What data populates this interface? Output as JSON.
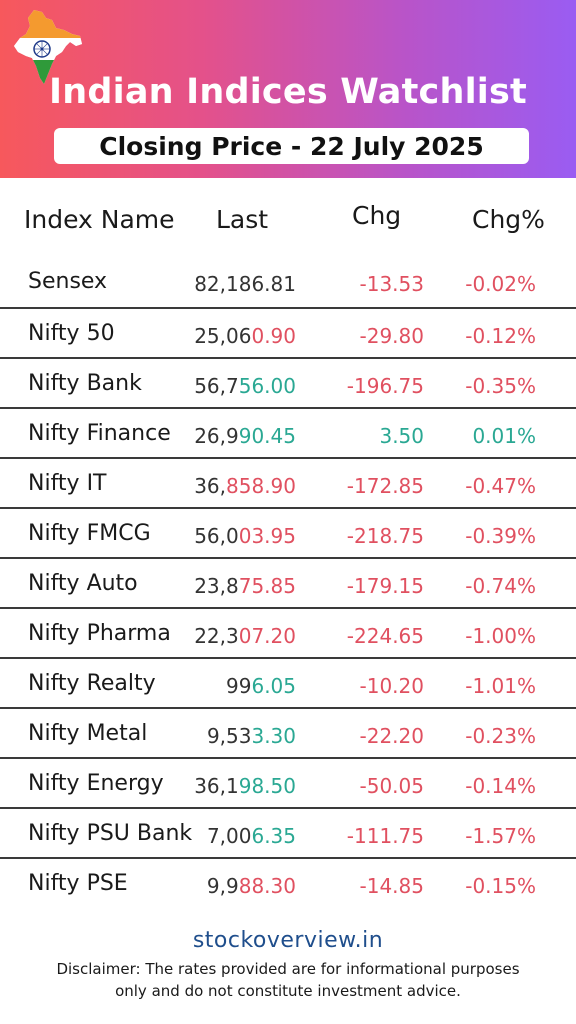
{
  "header": {
    "title": "Indian Indices Watchlist",
    "subtitle": "Closing Price - 22 July 2025",
    "gradient_colors": [
      "#f7585c",
      "#e4518a",
      "#b954c8",
      "#9a5cf2"
    ]
  },
  "table": {
    "columns": [
      "Index Name",
      "Last",
      "Chg",
      "Chg%"
    ],
    "rows": [
      {
        "name": "Sensex",
        "last_head": "82,186.81",
        "last_tail": "",
        "tail_color": "red",
        "chg": "-13.53",
        "pct": "-0.02%",
        "dir": "neg"
      },
      {
        "name": "Nifty 50",
        "last_head": "25,06",
        "last_tail": "0.90",
        "tail_color": "red",
        "chg": "-29.80",
        "pct": "-0.12%",
        "dir": "neg"
      },
      {
        "name": "Nifty Bank",
        "last_head": "56,7",
        "last_tail": "56.00",
        "tail_color": "green",
        "chg": "-196.75",
        "pct": "-0.35%",
        "dir": "neg"
      },
      {
        "name": "Nifty Finance",
        "last_head": "26,9",
        "last_tail": "90.45",
        "tail_color": "green",
        "chg": "3.50",
        "pct": "0.01%",
        "dir": "pos"
      },
      {
        "name": "Nifty IT",
        "last_head": "36,",
        "last_tail": "858.90",
        "tail_color": "red",
        "chg": "-172.85",
        "pct": "-0.47%",
        "dir": "neg"
      },
      {
        "name": "Nifty FMCG",
        "last_head": "56,0",
        "last_tail": "03.95",
        "tail_color": "red",
        "chg": "-218.75",
        "pct": "-0.39%",
        "dir": "neg"
      },
      {
        "name": "Nifty Auto",
        "last_head": "23,8",
        "last_tail": "75.85",
        "tail_color": "red",
        "chg": "-179.15",
        "pct": "-0.74%",
        "dir": "neg"
      },
      {
        "name": "Nifty Pharma",
        "last_head": "22,3",
        "last_tail": "07.20",
        "tail_color": "red",
        "chg": "-224.65",
        "pct": "-1.00%",
        "dir": "neg"
      },
      {
        "name": "Nifty Realty",
        "last_head": "99",
        "last_tail": "6.05",
        "tail_color": "green",
        "chg": "-10.20",
        "pct": "-1.01%",
        "dir": "neg"
      },
      {
        "name": "Nifty Metal",
        "last_head": "9,53",
        "last_tail": "3.30",
        "tail_color": "green",
        "chg": "-22.20",
        "pct": "-0.23%",
        "dir": "neg"
      },
      {
        "name": "Nifty Energy",
        "last_head": "36,1",
        "last_tail": "98.50",
        "tail_color": "green",
        "chg": "-50.05",
        "pct": "-0.14%",
        "dir": "neg"
      },
      {
        "name": "Nifty PSU Bank",
        "last_head": "7,00",
        "last_tail": "6.35",
        "tail_color": "green",
        "chg": "-111.75",
        "pct": "-1.57%",
        "dir": "neg"
      },
      {
        "name": "Nifty PSE",
        "last_head": "9,9",
        "last_tail": "88.30",
        "tail_color": "red",
        "chg": "-14.85",
        "pct": "-0.15%",
        "dir": "neg"
      }
    ]
  },
  "footer": {
    "site": "stockoverview.in",
    "disclaimer": "Disclaimer: The rates provided are for informational purposes only and do not constitute investment advice."
  },
  "icons": {
    "map": "india-map-flag-icon"
  },
  "colors": {
    "negative": "#e05060",
    "positive": "#2aa893",
    "site": "#1f4e8c"
  }
}
